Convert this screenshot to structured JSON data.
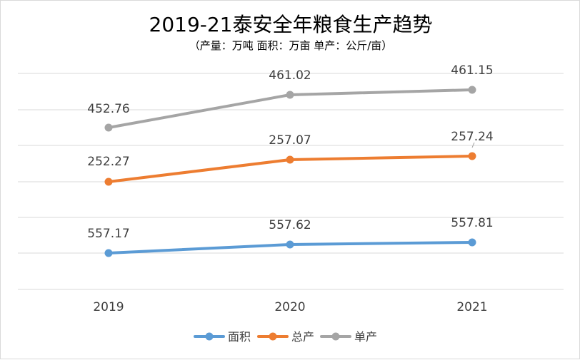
{
  "chart_data": {
    "type": "line",
    "title": "2019-21泰安全年粮食生产趋势",
    "subtitle": "（产量：万吨   面积：万亩   单产：公斤/亩）",
    "categories": [
      "2019",
      "2020",
      "2021"
    ],
    "series": [
      {
        "name": "面积",
        "values": [
          557.17,
          557.62,
          557.81
        ],
        "color": "#5b9bd5"
      },
      {
        "name": "总产",
        "values": [
          252.27,
          257.07,
          257.24
        ],
        "color": "#ed7d31"
      },
      {
        "name": "单产",
        "values": [
          452.76,
          461.02,
          461.15
        ],
        "color": "#a5a5a5"
      }
    ],
    "grid": true,
    "legend": "bottom"
  }
}
